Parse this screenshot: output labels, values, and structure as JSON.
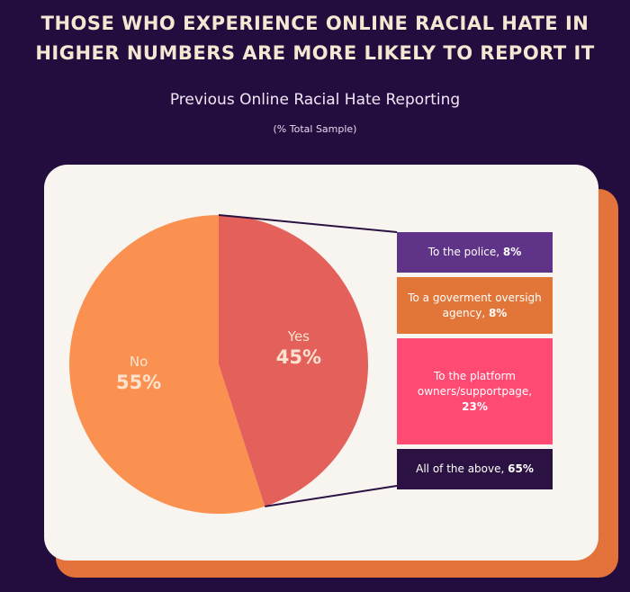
{
  "header": {
    "headline_line1": "THOSE WHO EXPERIENCE ONLINE RACIAL HATE IN",
    "headline_line2": "HIGHER NUMBERS ARE MORE  LIKELY TO REPORT IT"
  },
  "chart_data": {
    "type": "pie",
    "title": "Previous Online Racial Hate Reporting",
    "subtitle": "(% Total Sample)",
    "slices": [
      {
        "label": "No",
        "value": 55,
        "value_label": "55%",
        "color": "#fb9150"
      },
      {
        "label": "Yes",
        "value": 45,
        "value_label": "45%",
        "color": "#e3615a"
      }
    ],
    "breakdown_of": "Yes",
    "breakdown": [
      {
        "text": "To the police, ",
        "value": 8,
        "value_label": "8%",
        "color": "#5e3388"
      },
      {
        "text": "To a goverment oversigh agency, ",
        "value": 8,
        "value_label": "8%",
        "color": "#e27638"
      },
      {
        "text": "To the platform owners/supportpage, ",
        "value": 23,
        "value_label": "23%",
        "color": "#ff4a73"
      },
      {
        "text": "All of the above, ",
        "value": 65,
        "value_label": "65%",
        "color": "#2b1242"
      }
    ]
  },
  "colors": {
    "background": "#230d3f",
    "card": "#f8f5f1",
    "card_shadow": "#e3733a",
    "connector": "#2b1242"
  }
}
